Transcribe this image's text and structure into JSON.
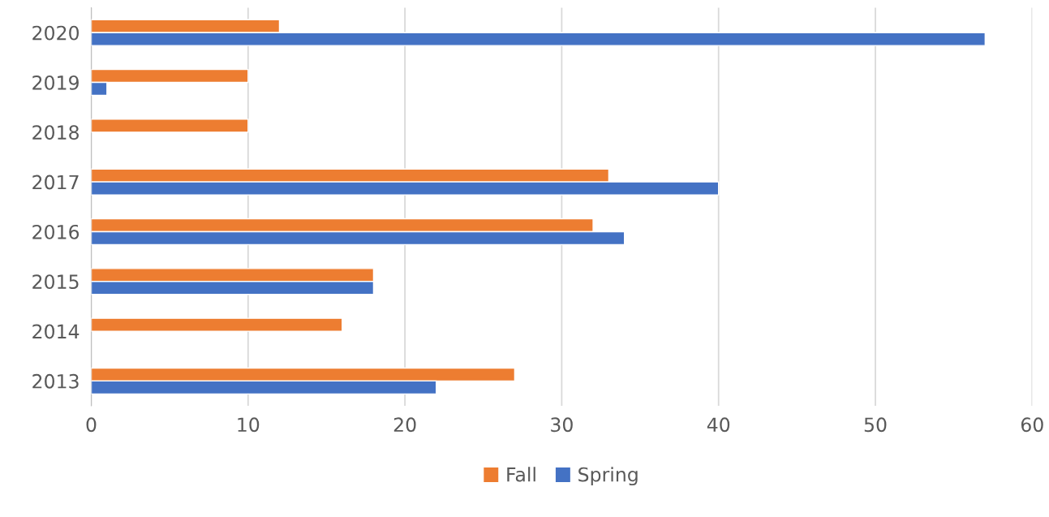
{
  "chart_data": {
    "type": "bar",
    "orientation": "horizontal",
    "categories": [
      "2020",
      "2019",
      "2018",
      "2017",
      "2016",
      "2015",
      "2014",
      "2013"
    ],
    "series": [
      {
        "name": "Fall",
        "color": "#ed7d31",
        "values": [
          12,
          10,
          10,
          33,
          32,
          18,
          16,
          27
        ]
      },
      {
        "name": "Spring",
        "color": "#4472c4",
        "values": [
          57,
          1,
          null,
          40,
          34,
          18,
          null,
          22
        ]
      }
    ],
    "xlim": [
      0,
      60
    ],
    "xticks": [
      0,
      10,
      20,
      30,
      40,
      50,
      60
    ],
    "grid": "x",
    "legend": "bottom"
  }
}
